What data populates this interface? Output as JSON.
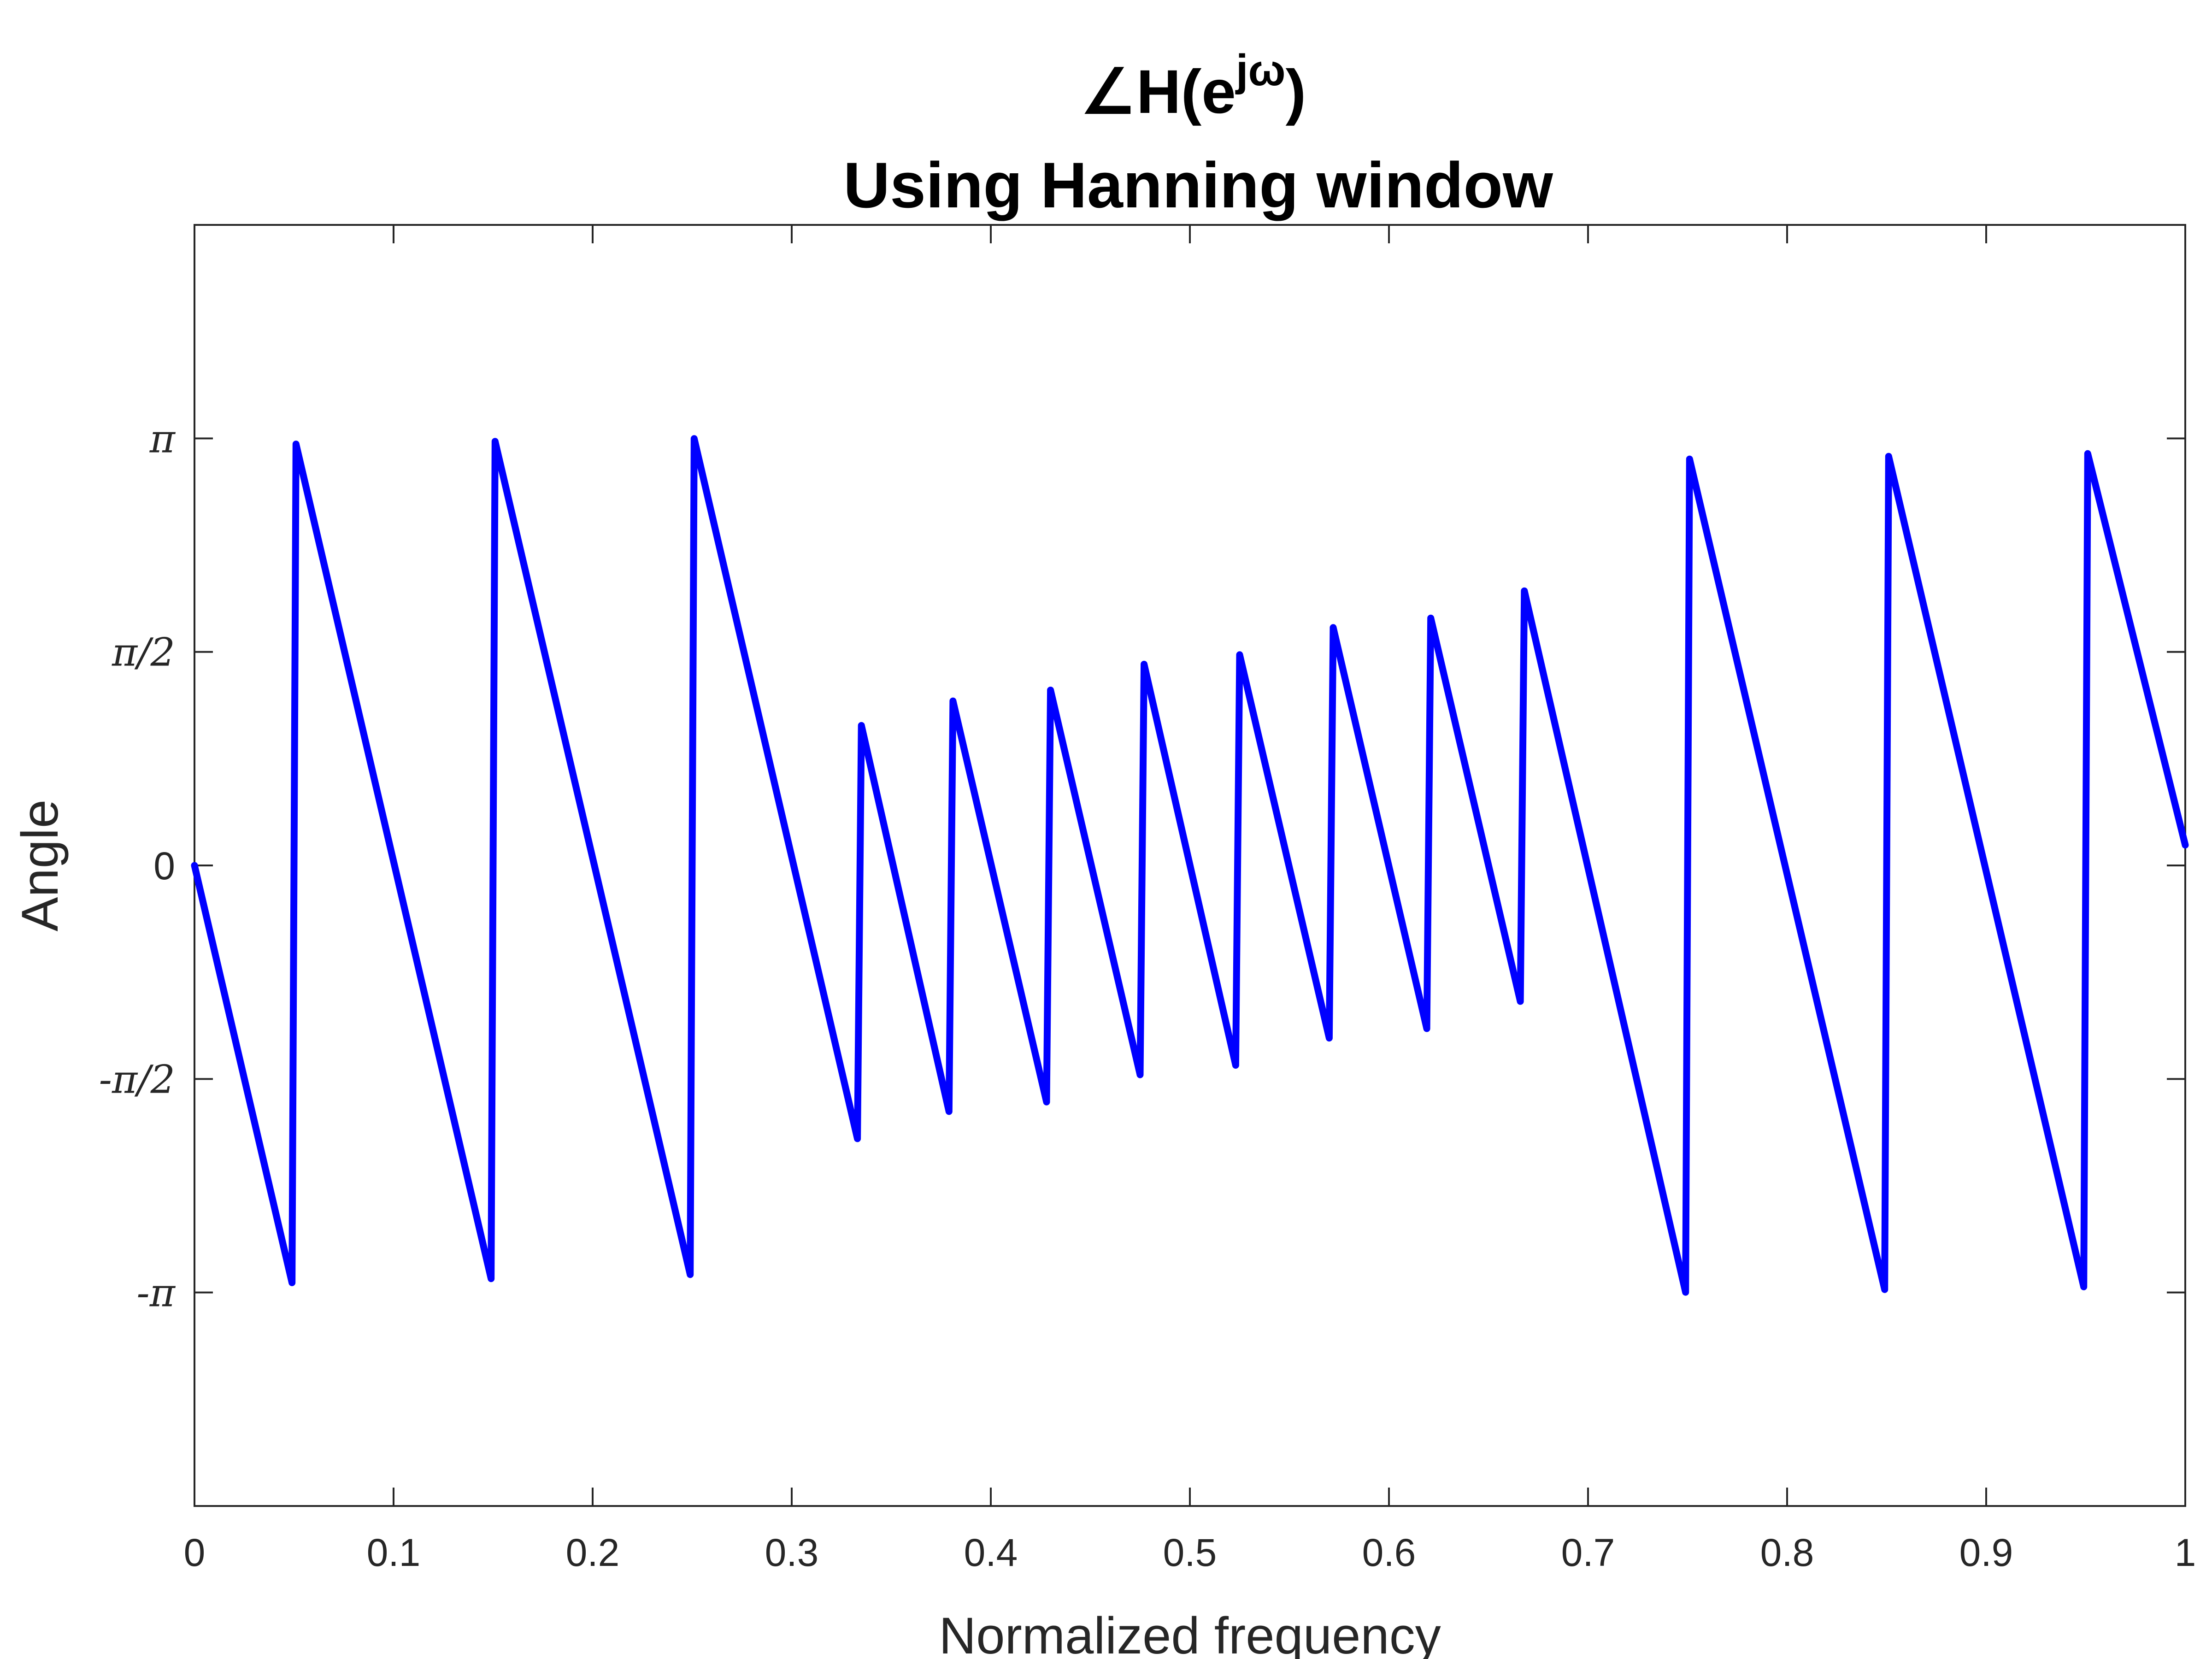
{
  "chart_data": {
    "type": "line",
    "title_line1_prefix": "∠H(e",
    "title_line1_superscript": "jω",
    "title_line1_suffix": ")",
    "title_line2": "Using Hanning window",
    "xlabel": "Normalized frequency",
    "ylabel": "Angle",
    "xlim": [
      0,
      1
    ],
    "ylim": [
      -4.7124,
      4.7124
    ],
    "x_ticks": [
      {
        "value": 0,
        "label": "0"
      },
      {
        "value": 0.1,
        "label": "0.1"
      },
      {
        "value": 0.2,
        "label": "0.2"
      },
      {
        "value": 0.3,
        "label": "0.3"
      },
      {
        "value": 0.4,
        "label": "0.4"
      },
      {
        "value": 0.5,
        "label": "0.5"
      },
      {
        "value": 0.6,
        "label": "0.6"
      },
      {
        "value": 0.7,
        "label": "0.7"
      },
      {
        "value": 0.8,
        "label": "0.8"
      },
      {
        "value": 0.9,
        "label": "0.9"
      },
      {
        "value": 1,
        "label": "1"
      }
    ],
    "y_ticks": [
      {
        "value": -3.1416,
        "label": "-π"
      },
      {
        "value": -1.5708,
        "label": "-π/2"
      },
      {
        "value": 0,
        "label": "0"
      },
      {
        "value": 1.5708,
        "label": "π/2"
      },
      {
        "value": 3.1416,
        "label": "π"
      }
    ],
    "grid": false,
    "line_color": "#0000ff",
    "series": [
      {
        "x": [
          0,
          0.049,
          0.051,
          0.149,
          0.151,
          0.249,
          0.251,
          0.333,
          0.335,
          0.379,
          0.381,
          0.428,
          0.43,
          0.475,
          0.477,
          0.523,
          0.525,
          0.57,
          0.572,
          0.619,
          0.621,
          0.666,
          0.668,
          0.749,
          0.751,
          0.849,
          0.851,
          0.949,
          0.951,
          1.0
        ],
        "y": [
          0,
          -3.07,
          3.1,
          -3.04,
          3.12,
          -3.01,
          3.14,
          -2.01,
          1.03,
          -1.81,
          1.21,
          -1.74,
          1.29,
          -1.54,
          1.48,
          -1.47,
          1.55,
          -1.27,
          1.75,
          -1.2,
          1.82,
          -1.0,
          2.02,
          -3.14,
          2.99,
          -3.12,
          3.01,
          -3.1,
          3.03,
          0.15
        ]
      }
    ]
  }
}
